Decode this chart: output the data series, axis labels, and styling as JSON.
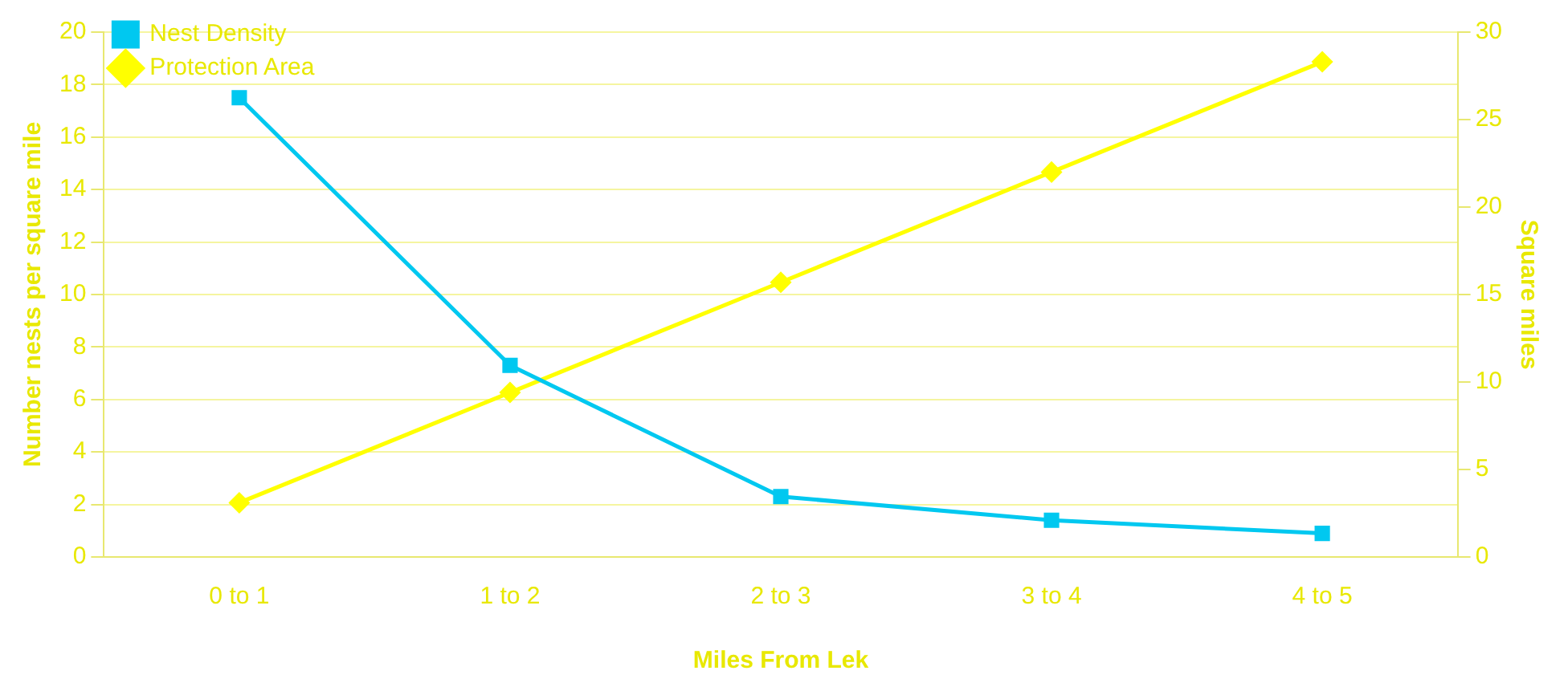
{
  "chart_data": {
    "type": "line",
    "categories": [
      "0 to 1",
      "1 to 2",
      "2 to 3",
      "3 to 4",
      "4 to 5"
    ],
    "series": [
      {
        "name": "Nest Density",
        "color": "#00c8f0",
        "marker": "square",
        "values": [
          17.5,
          7.3,
          2.3,
          1.4,
          0.9
        ]
      },
      {
        "name": "Protection Area",
        "color": "#ffff00",
        "marker": "diamond",
        "axis": "y2",
        "values": [
          3.1,
          9.4,
          15.7,
          22.0,
          28.3
        ]
      }
    ],
    "xlabel": "Miles From Lek",
    "ylabel": "Number nests per square mile",
    "y2label": "Square miles",
    "ylim": [
      0,
      20
    ],
    "yticks": [
      0,
      2,
      4,
      6,
      8,
      10,
      12,
      14,
      16,
      18,
      20
    ],
    "y2lim": [
      0,
      30
    ],
    "y2ticks": [
      0,
      5,
      10,
      15,
      20,
      25,
      30
    ],
    "grid": "y",
    "legend": "top left"
  }
}
